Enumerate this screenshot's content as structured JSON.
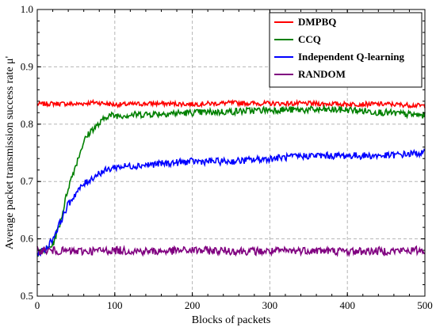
{
  "chart_data": {
    "type": "line",
    "xlabel": "Blocks of packets",
    "ylabel": "Average packet transmission success rate μ'",
    "xlim": [
      0,
      500
    ],
    "ylim": [
      0.5,
      1.0
    ],
    "x_ticks": [
      "0",
      "100",
      "200",
      "300",
      "400",
      "500"
    ],
    "y_ticks": [
      "0.5",
      "0.6",
      "0.7",
      "0.8",
      "0.9",
      "1.0"
    ],
    "grid": true,
    "legend_position": "top-right",
    "series": [
      {
        "name": "DMPBQ",
        "color": "#ff0000",
        "x": [
          0,
          25,
          50,
          75,
          100,
          150,
          200,
          250,
          300,
          350,
          400,
          450,
          500
        ],
        "y": [
          0.835,
          0.836,
          0.835,
          0.838,
          0.834,
          0.836,
          0.835,
          0.837,
          0.836,
          0.836,
          0.835,
          0.835,
          0.832
        ]
      },
      {
        "name": "CCQ",
        "color": "#008000",
        "x": [
          0,
          10,
          20,
          30,
          40,
          50,
          60,
          70,
          80,
          90,
          100,
          150,
          200,
          250,
          300,
          350,
          400,
          450,
          500
        ],
        "y": [
          0.575,
          0.58,
          0.59,
          0.63,
          0.69,
          0.73,
          0.77,
          0.79,
          0.8,
          0.815,
          0.815,
          0.818,
          0.82,
          0.822,
          0.825,
          0.825,
          0.825,
          0.82,
          0.815
        ]
      },
      {
        "name": "Independent Q-learning",
        "color": "#0000ff",
        "x": [
          0,
          10,
          20,
          30,
          40,
          50,
          60,
          70,
          80,
          90,
          100,
          150,
          200,
          250,
          300,
          350,
          400,
          450,
          500
        ],
        "y": [
          0.575,
          0.58,
          0.6,
          0.63,
          0.66,
          0.68,
          0.695,
          0.705,
          0.715,
          0.72,
          0.725,
          0.73,
          0.735,
          0.735,
          0.74,
          0.745,
          0.745,
          0.745,
          0.75
        ]
      },
      {
        "name": "RANDOM",
        "color": "#800080",
        "x": [
          0,
          50,
          100,
          150,
          200,
          250,
          300,
          350,
          400,
          450,
          500
        ],
        "y": [
          0.58,
          0.578,
          0.58,
          0.578,
          0.58,
          0.579,
          0.578,
          0.58,
          0.578,
          0.579,
          0.58
        ]
      }
    ]
  }
}
